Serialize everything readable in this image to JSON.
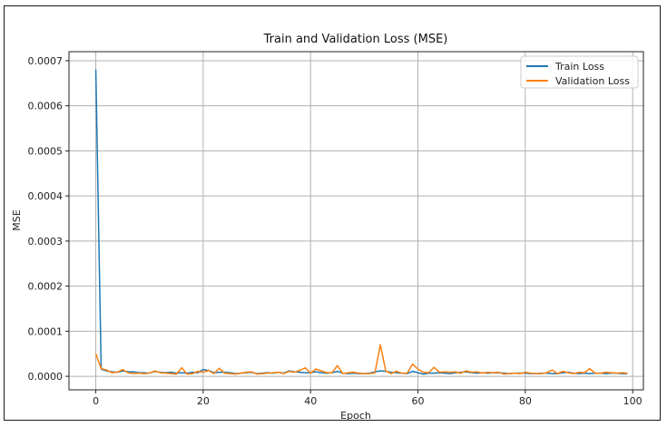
{
  "chart_data": {
    "type": "line",
    "title": "Train and Validation Loss (MSE)",
    "xlabel": "Epoch",
    "ylabel": "MSE",
    "xlim": [
      -5,
      102
    ],
    "ylim": [
      -3e-05,
      0.00072
    ],
    "xticks": [
      0,
      20,
      40,
      60,
      80,
      100
    ],
    "yticks": [
      0.0,
      0.0001,
      0.0002,
      0.0003,
      0.0004,
      0.0005,
      0.0006,
      0.0007
    ],
    "xtick_labels": [
      "0",
      "20",
      "40",
      "60",
      "80",
      "100"
    ],
    "ytick_labels": [
      "0.0000",
      "0.0001",
      "0.0002",
      "0.0003",
      "0.0004",
      "0.0005",
      "0.0006",
      "0.0007"
    ],
    "grid": true,
    "legend_position": "top-right",
    "x": [
      0,
      1,
      2,
      3,
      4,
      5,
      6,
      7,
      8,
      9,
      10,
      11,
      12,
      13,
      14,
      15,
      16,
      17,
      18,
      19,
      20,
      21,
      22,
      23,
      24,
      25,
      26,
      27,
      28,
      29,
      30,
      31,
      32,
      33,
      34,
      35,
      36,
      37,
      38,
      39,
      40,
      41,
      42,
      43,
      44,
      45,
      46,
      47,
      48,
      49,
      50,
      51,
      52,
      53,
      54,
      55,
      56,
      57,
      58,
      59,
      60,
      61,
      62,
      63,
      64,
      65,
      66,
      67,
      68,
      69,
      70,
      71,
      72,
      73,
      74,
      75,
      76,
      77,
      78,
      79,
      80,
      81,
      82,
      83,
      84,
      85,
      86,
      87,
      88,
      89,
      90,
      91,
      92,
      93,
      94,
      95,
      96,
      97,
      98,
      99
    ],
    "series": [
      {
        "name": "Train Loss",
        "color": "#1f77b4",
        "values": [
          0.00068,
          1.6e-05,
          1.2e-05,
          1e-05,
          9e-06,
          1.2e-05,
          1e-05,
          1e-05,
          8e-06,
          8e-06,
          7e-06,
          1.1e-05,
          9e-06,
          8e-06,
          9e-06,
          7e-06,
          8e-06,
          7e-06,
          9e-06,
          8e-06,
          1.5e-05,
          1.3e-05,
          8e-06,
          9e-06,
          9e-06,
          8e-06,
          6e-06,
          7e-06,
          8e-06,
          9e-06,
          6e-06,
          7e-06,
          8e-06,
          7e-06,
          9e-06,
          7e-06,
          1.2e-05,
          1e-05,
          9e-06,
          8e-06,
          8e-06,
          1e-05,
          8e-06,
          7e-06,
          8e-06,
          1.1e-05,
          7e-06,
          6e-06,
          7e-06,
          6e-06,
          6e-06,
          7e-06,
          1e-05,
          1.2e-05,
          1.1e-05,
          9e-06,
          8e-06,
          7e-06,
          6e-06,
          1.1e-05,
          8e-06,
          5e-06,
          7e-06,
          7e-06,
          8e-06,
          7e-06,
          6e-06,
          8e-06,
          9e-06,
          1e-05,
          8e-06,
          7e-06,
          8e-06,
          7e-06,
          8e-06,
          8e-06,
          7e-06,
          6e-06,
          7e-06,
          7e-06,
          7e-06,
          6e-06,
          6e-06,
          7e-06,
          7e-06,
          6e-06,
          6e-06,
          8e-06,
          9e-06,
          7e-06,
          6e-06,
          7e-06,
          6e-06,
          7e-06,
          7e-06,
          6e-06,
          7e-06,
          7e-06,
          6e-06,
          6e-06
        ]
      },
      {
        "name": "Validation Loss",
        "color": "#ff7f0e",
        "values": [
          5e-05,
          1.7e-05,
          1.4e-05,
          8e-06,
          9e-06,
          1.5e-05,
          8e-06,
          6e-06,
          7e-06,
          6e-06,
          7e-06,
          1.2e-05,
          8e-06,
          7e-06,
          6e-06,
          5e-06,
          1.9e-05,
          5e-06,
          6e-06,
          1.1e-05,
          9e-06,
          1.3e-05,
          6e-06,
          1.8e-05,
          7e-06,
          6e-06,
          5e-06,
          7e-06,
          9e-06,
          1e-05,
          5e-06,
          6e-06,
          7e-06,
          8e-06,
          9e-06,
          6e-06,
          1.1e-05,
          9e-06,
          1.3e-05,
          1.9e-05,
          7e-06,
          1.6e-05,
          1.2e-05,
          8e-06,
          8e-06,
          2.4e-05,
          6e-06,
          8e-06,
          9e-06,
          7e-06,
          6e-06,
          6e-06,
          8e-06,
          7e-05,
          1.2e-05,
          6e-06,
          1.1e-05,
          7e-06,
          7e-06,
          2.7e-05,
          1.6e-05,
          9e-06,
          8e-06,
          2e-05,
          9e-06,
          1e-05,
          9e-06,
          1e-05,
          7e-06,
          1.2e-05,
          9e-06,
          1e-05,
          7e-06,
          9e-06,
          8e-06,
          9e-06,
          5e-06,
          6e-06,
          7e-06,
          6e-06,
          9e-06,
          7e-06,
          6e-06,
          6e-06,
          8e-06,
          1.4e-05,
          6e-06,
          1.1e-05,
          8e-06,
          6e-06,
          9e-06,
          8e-06,
          1.7e-05,
          7e-06,
          7e-06,
          9e-06,
          8e-06,
          7e-06,
          8e-06,
          7e-06
        ]
      }
    ]
  }
}
